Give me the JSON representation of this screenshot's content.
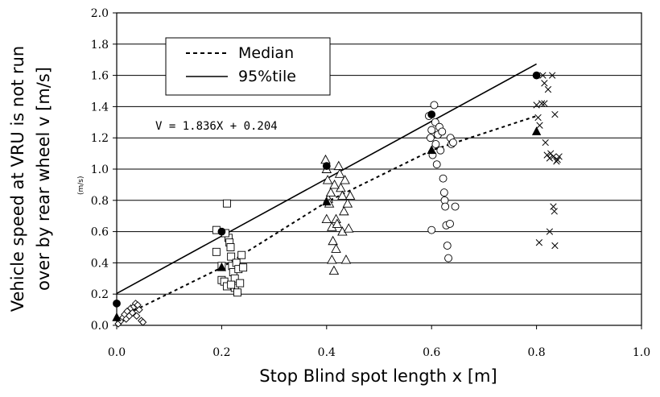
{
  "chart_data": {
    "type": "scatter",
    "xlabel": "Stop Blind spot length x [m]",
    "ylabel_line1": "Vehicle speed at VRU is not run",
    "ylabel_line2": "over by rear wheel  v [m/s]",
    "xlim": [
      0,
      1.0
    ],
    "ylim": [
      0,
      2.0
    ],
    "x_ticks": [
      "0.0",
      "0.2",
      "0.4",
      "0.6",
      "0.8",
      "1.0"
    ],
    "y_ticks": [
      "0.0",
      "0.2",
      "0.4",
      "0.6",
      "0.8",
      "1.0",
      "1.2",
      "1.4",
      "1.6",
      "1.8",
      "2.0"
    ],
    "grid": "horizontal",
    "legend_position": "top-left",
    "legend": [
      {
        "label": "Median",
        "style": "dashed"
      },
      {
        "label": "95%tile",
        "style": "solid"
      }
    ],
    "annotations": {
      "equation": "V = 1.836X + 0.204",
      "stray_label": "(m/s)"
    },
    "lines": [
      {
        "name": "95%tile",
        "style": "solid",
        "points": [
          [
            0.0,
            0.204
          ],
          [
            0.8,
            1.673
          ]
        ]
      },
      {
        "name": "Median",
        "style": "dashed",
        "points": [
          [
            0.0,
            0.04
          ],
          [
            0.2,
            0.37
          ],
          [
            0.4,
            0.79
          ],
          [
            0.6,
            1.12
          ],
          [
            0.8,
            1.34
          ]
        ]
      }
    ],
    "scatter_groups": [
      {
        "marker": "diamond",
        "points": [
          [
            0.003,
            0.01
          ],
          [
            0.008,
            0.03
          ],
          [
            0.012,
            0.05
          ],
          [
            0.015,
            0.07
          ],
          [
            0.018,
            0.04
          ],
          [
            0.02,
            0.09
          ],
          [
            0.024,
            0.06
          ],
          [
            0.027,
            0.11
          ],
          [
            0.03,
            0.08
          ],
          [
            0.033,
            0.12
          ],
          [
            0.036,
            0.14
          ],
          [
            0.04,
            0.13
          ],
          [
            0.043,
            0.1
          ],
          [
            0.047,
            0.03
          ],
          [
            0.05,
            0.02
          ],
          [
            0.038,
            0.06
          ]
        ]
      },
      {
        "marker": "square",
        "points": [
          [
            0.19,
            0.61
          ],
          [
            0.19,
            0.47
          ],
          [
            0.2,
            0.38
          ],
          [
            0.2,
            0.29
          ],
          [
            0.205,
            0.28
          ],
          [
            0.21,
            0.25
          ],
          [
            0.21,
            0.78
          ],
          [
            0.213,
            0.56
          ],
          [
            0.215,
            0.53
          ],
          [
            0.217,
            0.5
          ],
          [
            0.218,
            0.44
          ],
          [
            0.22,
            0.38
          ],
          [
            0.222,
            0.34
          ],
          [
            0.225,
            0.3
          ],
          [
            0.225,
            0.24
          ],
          [
            0.228,
            0.4
          ],
          [
            0.23,
            0.21
          ],
          [
            0.232,
            0.36
          ],
          [
            0.235,
            0.27
          ],
          [
            0.238,
            0.45
          ],
          [
            0.241,
            0.37
          ],
          [
            0.218,
            0.26
          ],
          [
            0.207,
            0.59
          ]
        ]
      },
      {
        "marker": "triangle",
        "points": [
          [
            0.398,
            1.06
          ],
          [
            0.4,
            1.0
          ],
          [
            0.402,
            0.93
          ],
          [
            0.403,
            0.81
          ],
          [
            0.405,
            0.78
          ],
          [
            0.408,
            0.85
          ],
          [
            0.41,
            0.63
          ],
          [
            0.41,
            0.42
          ],
          [
            0.412,
            0.54
          ],
          [
            0.414,
            0.35
          ],
          [
            0.418,
            0.49
          ],
          [
            0.418,
            0.68
          ],
          [
            0.42,
            0.65
          ],
          [
            0.423,
            1.02
          ],
          [
            0.425,
            0.97
          ],
          [
            0.427,
            0.88
          ],
          [
            0.43,
            0.83
          ],
          [
            0.43,
            0.6
          ],
          [
            0.433,
            0.73
          ],
          [
            0.435,
            0.93
          ],
          [
            0.437,
            0.42
          ],
          [
            0.44,
            0.78
          ],
          [
            0.442,
            0.62
          ],
          [
            0.445,
            0.83
          ],
          [
            0.4,
            0.68
          ],
          [
            0.415,
            0.9
          ]
        ]
      },
      {
        "marker": "circle",
        "points": [
          [
            0.595,
            1.34
          ],
          [
            0.598,
            1.2
          ],
          [
            0.6,
            1.25
          ],
          [
            0.602,
            1.09
          ],
          [
            0.605,
            1.41
          ],
          [
            0.607,
            1.3
          ],
          [
            0.608,
            1.16
          ],
          [
            0.61,
            1.03
          ],
          [
            0.612,
            1.22
          ],
          [
            0.615,
            1.27
          ],
          [
            0.617,
            1.12
          ],
          [
            0.62,
            1.24
          ],
          [
            0.622,
            0.94
          ],
          [
            0.624,
            0.85
          ],
          [
            0.625,
            0.8
          ],
          [
            0.626,
            0.76
          ],
          [
            0.628,
            0.64
          ],
          [
            0.63,
            0.51
          ],
          [
            0.632,
            0.43
          ],
          [
            0.635,
            0.65
          ],
          [
            0.636,
            1.2
          ],
          [
            0.638,
            1.16
          ],
          [
            0.641,
            1.17
          ],
          [
            0.645,
            0.76
          ],
          [
            0.6,
            0.61
          ]
        ]
      },
      {
        "marker": "cross",
        "points": [
          [
            0.8,
            1.41
          ],
          [
            0.803,
            1.33
          ],
          [
            0.806,
            1.28
          ],
          [
            0.81,
            1.42
          ],
          [
            0.812,
            1.6
          ],
          [
            0.815,
            1.55
          ],
          [
            0.817,
            1.17
          ],
          [
            0.82,
            1.09
          ],
          [
            0.822,
            1.51
          ],
          [
            0.825,
            1.07
          ],
          [
            0.827,
            1.1
          ],
          [
            0.83,
            1.6
          ],
          [
            0.832,
            1.08
          ],
          [
            0.835,
            1.35
          ],
          [
            0.838,
            1.05
          ],
          [
            0.84,
            1.06
          ],
          [
            0.843,
            1.08
          ],
          [
            0.805,
            0.53
          ],
          [
            0.825,
            0.6
          ],
          [
            0.832,
            0.76
          ],
          [
            0.834,
            0.73
          ],
          [
            0.835,
            0.51
          ],
          [
            0.815,
            1.42
          ]
        ]
      },
      {
        "marker": "filled-circle",
        "points": [
          [
            0.0,
            0.14
          ],
          [
            0.2,
            0.6
          ],
          [
            0.4,
            1.02
          ],
          [
            0.6,
            1.35
          ],
          [
            0.8,
            1.6
          ]
        ]
      },
      {
        "marker": "filled-triangle",
        "points": [
          [
            0.0,
            0.05
          ],
          [
            0.2,
            0.37
          ],
          [
            0.4,
            0.79
          ],
          [
            0.6,
            1.12
          ],
          [
            0.8,
            1.24
          ]
        ]
      }
    ]
  }
}
